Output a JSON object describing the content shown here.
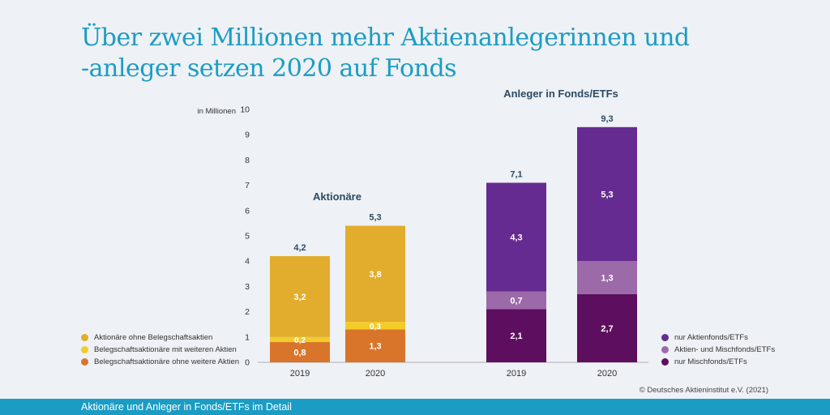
{
  "title_lines": [
    "Über zwei Millionen mehr Aktienanlegerinnen und",
    "-anleger setzen 2020 auf Fonds"
  ],
  "chart_data": {
    "type": "bar",
    "stacked": true,
    "yunit": "in Millionen",
    "ylim": [
      0,
      10
    ],
    "yticks": [
      "0",
      "1",
      "2",
      "3",
      "4",
      "5",
      "6",
      "7",
      "8",
      "9",
      "10"
    ],
    "grid": false,
    "groups": [
      {
        "title": "Aktionäre",
        "categories": [
          "2019",
          "2020"
        ],
        "totals": [
          "4,2",
          "5,3"
        ],
        "series": [
          {
            "name": "Belegschaftsaktionäre ohne weitere Aktien",
            "color": "#d8752a",
            "values": [
              0.8,
              1.3
            ],
            "labels": [
              "0,8",
              "1,3"
            ]
          },
          {
            "name": "Belegschaftsaktionäre mit weiteren Aktien",
            "color": "#f2cc2a",
            "values": [
              0.2,
              0.3
            ],
            "labels": [
              "0,2",
              "0,3"
            ]
          },
          {
            "name": "Aktionäre ohne Belegschaftsaktien",
            "color": "#e2ac2c",
            "values": [
              3.2,
              3.8
            ],
            "labels": [
              "3,2",
              "3,8"
            ]
          }
        ]
      },
      {
        "title": "Anleger in Fonds/ETFs",
        "categories": [
          "2019",
          "2020"
        ],
        "totals": [
          "7,1",
          "9,3"
        ],
        "series": [
          {
            "name": "nur Mischfonds/ETFs",
            "color": "#5e0e5e",
            "values": [
              2.1,
              2.7
            ],
            "labels": [
              "2,1",
              "2,7"
            ]
          },
          {
            "name": "Aktien- und Mischfonds/ETFs",
            "color": "#9c6aa8",
            "values": [
              0.7,
              1.3
            ],
            "labels": [
              "0,7",
              "1,3"
            ]
          },
          {
            "name": "nur Aktienfonds/ETFs",
            "color": "#662b91",
            "values": [
              4.3,
              5.3
            ],
            "labels": [
              "4,3",
              "5,3"
            ]
          }
        ]
      }
    ]
  },
  "legend_left": [
    {
      "label": "Aktionäre ohne Belegschaftsaktien",
      "color": "#e2ac2c"
    },
    {
      "label": "Belegschaftsaktionäre mit weiteren Aktien",
      "color": "#f2cc2a"
    },
    {
      "label": "Belegschaftsaktionäre ohne weitere Aktien",
      "color": "#d8752a"
    }
  ],
  "legend_right": [
    {
      "label": "nur Aktienfonds/ETFs",
      "color": "#662b91"
    },
    {
      "label": "Aktien- und Mischfonds/ETFs",
      "color": "#9c6aa8"
    },
    {
      "label": "nur Mischfonds/ETFs",
      "color": "#5e0e5e"
    }
  ],
  "copyright": "© Deutsches Aktieninstitut e.V. (2021)",
  "footer": "Aktionäre und Anleger in Fonds/ETFs im Detail"
}
